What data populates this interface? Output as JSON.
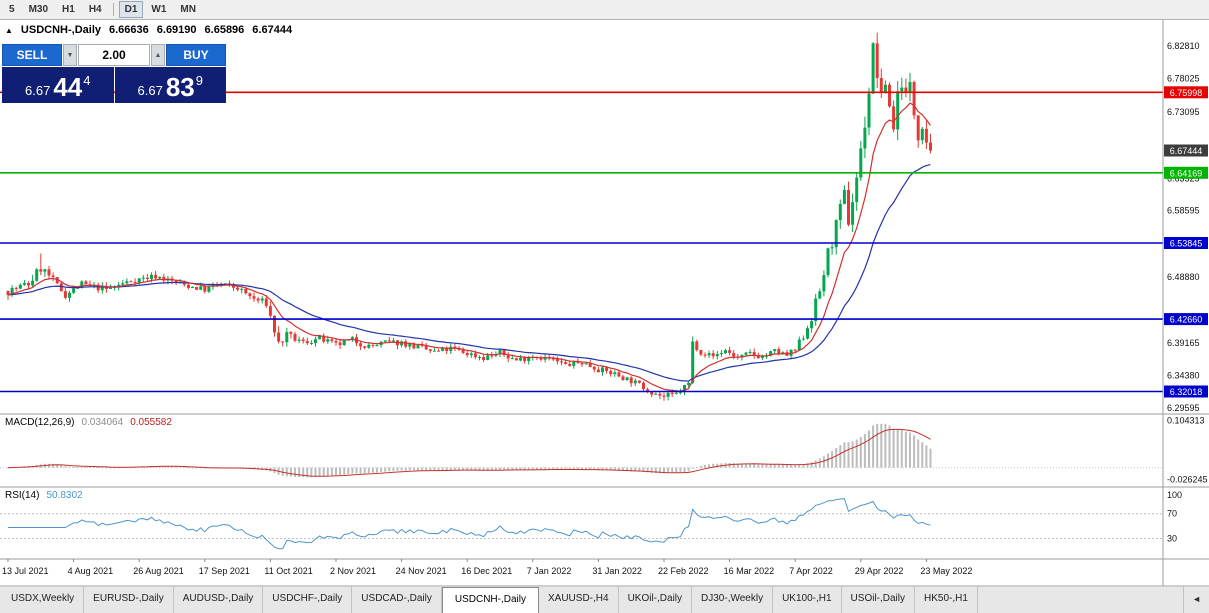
{
  "toolbar": {
    "timeframe_buttons": [
      {
        "label": "5",
        "active": false,
        "separator_after": false
      },
      {
        "label": "M30",
        "active": false,
        "separator_after": false
      },
      {
        "label": "H1",
        "active": false,
        "separator_after": false
      },
      {
        "label": "H4",
        "active": false,
        "separator_after": true
      },
      {
        "label": "D1",
        "active": true,
        "separator_after": false
      },
      {
        "label": "W1",
        "active": false,
        "separator_after": false
      },
      {
        "label": "MN",
        "active": false,
        "separator_after": false
      }
    ]
  },
  "chart_header": {
    "collapse_icon": "▲",
    "symbol": "USDCNH-,Daily",
    "open": "6.66636",
    "high": "6.69190",
    "low": "6.65896",
    "close": "6.67444"
  },
  "trade_panel": {
    "sell_label": "SELL",
    "buy_label": "BUY",
    "volume": "2.00",
    "volume_down_icon": "▼",
    "volume_up_icon": "▲",
    "sell_price": {
      "prefix": "6.67",
      "big": "44",
      "sup": "4"
    },
    "buy_price": {
      "prefix": "6.67",
      "big": "83",
      "sup": "9"
    }
  },
  "price_axis": {
    "ticks": [
      {
        "label": "6.82810",
        "value": 6.8281
      },
      {
        "label": "6.78025",
        "value": 6.78025
      },
      {
        "label": "6.73095",
        "value": 6.73095
      },
      {
        "label": "6.63325",
        "value": 6.63325
      },
      {
        "label": "6.58595",
        "value": 6.58595
      },
      {
        "label": "6.48880",
        "value": 6.4888
      },
      {
        "label": "6.39165",
        "value": 6.39165
      },
      {
        "label": "6.34380",
        "value": 6.3438
      },
      {
        "label": "6.29595",
        "value": 6.29595
      }
    ]
  },
  "price_levels": [
    {
      "label": "6.75998",
      "value": 6.75998,
      "color": "#e60000"
    },
    {
      "label": "6.64169",
      "value": 6.64169,
      "color": "#00b400"
    },
    {
      "label": "6.53845",
      "value": 6.53845,
      "color": "#0000cd"
    },
    {
      "label": "6.42660",
      "value": 6.4266,
      "color": "#0000cd"
    },
    {
      "label": "6.32018",
      "value": 6.32018,
      "color": "#0000cd"
    }
  ],
  "current_price_marker": {
    "label": "6.67444",
    "value": 6.67444,
    "bg": "#3d3d3d"
  },
  "macd_panel": {
    "title": "MACD(12,26,9)",
    "value_main": "0.034064",
    "value_signal": "0.055582",
    "ticks": [
      {
        "label": "0.104313",
        "value": 0.104313
      },
      {
        "label": "-0.026245",
        "value": -0.026245
      }
    ],
    "histogram_color": "#bcbcbc",
    "signal_color": "#c4302b"
  },
  "rsi_panel": {
    "title": "RSI(14)",
    "value": "50.8302",
    "ticks": [
      {
        "label": "100",
        "value": 100
      },
      {
        "label": "70",
        "value": 70
      },
      {
        "label": "30",
        "value": 30
      }
    ],
    "levels": [
      70,
      30
    ],
    "line_color": "#4f94cd"
  },
  "time_axis": {
    "labels": [
      "13 Jul 2021",
      "4 Aug 2021",
      "26 Aug 2021",
      "17 Sep 2021",
      "11 Oct 2021",
      "2 Nov 2021",
      "24 Nov 2021",
      "16 Dec 2021",
      "7 Jan 2022",
      "31 Jan 2022",
      "22 Feb 2022",
      "16 Mar 2022",
      "7 Apr 2022",
      "29 Apr 2022",
      "23 May 2022"
    ]
  },
  "bottom_tabs": {
    "items": [
      {
        "label": "USDX,Weekly",
        "active": false
      },
      {
        "label": "EURUSD-,Daily",
        "active": false
      },
      {
        "label": "AUDUSD-,Daily",
        "active": false
      },
      {
        "label": "USDCHF-,Daily",
        "active": false
      },
      {
        "label": "USDCAD-,Daily",
        "active": false
      },
      {
        "label": "USDCNH-,Daily",
        "active": true
      },
      {
        "label": "XAUUSD-,H4",
        "active": false
      },
      {
        "label": "UKOil-,Daily",
        "active": false
      },
      {
        "label": "DJ30-,Weekly",
        "active": false
      },
      {
        "label": "UK100-,H1",
        "active": false
      },
      {
        "label": "USOil-,Daily",
        "active": false
      },
      {
        "label": "HK50-,H1",
        "active": false
      }
    ],
    "scroll_left_icon": "◄"
  },
  "chart_data": {
    "type": "candlestick",
    "symbol": "USDCNH-,Daily",
    "candle_count": 226,
    "seed": 7,
    "last_close": 6.67444,
    "price_range": [
      6.2871,
      6.8663
    ],
    "close_keyframes": [
      [
        0,
        6.468
      ],
      [
        5,
        6.478
      ],
      [
        8,
        6.502
      ],
      [
        10,
        6.49
      ],
      [
        14,
        6.462
      ],
      [
        18,
        6.478
      ],
      [
        24,
        6.47
      ],
      [
        30,
        6.483
      ],
      [
        36,
        6.49
      ],
      [
        42,
        6.478
      ],
      [
        48,
        6.47
      ],
      [
        52,
        6.478
      ],
      [
        56,
        6.472
      ],
      [
        60,
        6.456
      ],
      [
        63,
        6.45
      ],
      [
        66,
        6.39
      ],
      [
        68,
        6.402
      ],
      [
        72,
        6.392
      ],
      [
        76,
        6.398
      ],
      [
        80,
        6.388
      ],
      [
        84,
        6.396
      ],
      [
        88,
        6.386
      ],
      [
        92,
        6.392
      ],
      [
        96,
        6.392
      ],
      [
        100,
        6.385
      ],
      [
        104,
        6.378
      ],
      [
        108,
        6.383
      ],
      [
        112,
        6.376
      ],
      [
        116,
        6.37
      ],
      [
        120,
        6.377
      ],
      [
        124,
        6.366
      ],
      [
        128,
        6.373
      ],
      [
        132,
        6.368
      ],
      [
        136,
        6.359
      ],
      [
        140,
        6.363
      ],
      [
        144,
        6.353
      ],
      [
        148,
        6.346
      ],
      [
        152,
        6.336
      ],
      [
        156,
        6.323
      ],
      [
        160,
        6.312
      ],
      [
        163,
        6.316
      ],
      [
        166,
        6.332
      ],
      [
        167,
        6.392
      ],
      [
        169,
        6.378
      ],
      [
        172,
        6.372
      ],
      [
        175,
        6.381
      ],
      [
        178,
        6.369
      ],
      [
        181,
        6.376
      ],
      [
        184,
        6.371
      ],
      [
        187,
        6.379
      ],
      [
        190,
        6.373
      ],
      [
        192,
        6.381
      ],
      [
        194,
        6.402
      ],
      [
        196,
        6.43
      ],
      [
        198,
        6.468
      ],
      [
        200,
        6.522
      ],
      [
        202,
        6.562
      ],
      [
        204,
        6.608
      ],
      [
        205,
        6.572
      ],
      [
        206,
        6.602
      ],
      [
        208,
        6.672
      ],
      [
        210,
        6.762
      ],
      [
        211,
        6.822
      ],
      [
        212,
        6.788
      ],
      [
        213,
        6.746
      ],
      [
        214,
        6.776
      ],
      [
        215,
        6.74
      ],
      [
        216,
        6.71
      ],
      [
        217,
        6.758
      ],
      [
        218,
        6.778
      ],
      [
        219,
        6.754
      ],
      [
        220,
        6.768
      ],
      [
        221,
        6.73
      ],
      [
        222,
        6.7
      ],
      [
        223,
        6.716
      ],
      [
        224,
        6.692
      ],
      [
        225,
        6.67444
      ]
    ],
    "volatility_keyframes": [
      [
        0,
        0.012
      ],
      [
        8,
        0.016
      ],
      [
        12,
        0.01
      ],
      [
        60,
        0.009
      ],
      [
        66,
        0.016
      ],
      [
        70,
        0.01
      ],
      [
        150,
        0.009
      ],
      [
        160,
        0.01
      ],
      [
        166,
        0.012
      ],
      [
        168,
        0.008
      ],
      [
        192,
        0.01
      ],
      [
        200,
        0.022
      ],
      [
        211,
        0.03
      ],
      [
        218,
        0.026
      ],
      [
        225,
        0.022
      ]
    ],
    "extremes": [
      {
        "index": 8,
        "type": "high",
        "price": 6.523
      },
      {
        "index": 160,
        "type": "low",
        "price": 6.308
      },
      {
        "index": 167,
        "type": "high",
        "price": 6.401
      },
      {
        "index": 211,
        "type": "high",
        "price": 6.8281
      }
    ],
    "moving_averages": [
      {
        "period": 10,
        "type": "ema",
        "color": "#d03030"
      },
      {
        "period": 30,
        "type": "ema",
        "color": "#2233aa"
      }
    ],
    "colors": {
      "up": "#06a64f",
      "down": "#e53935"
    }
  }
}
